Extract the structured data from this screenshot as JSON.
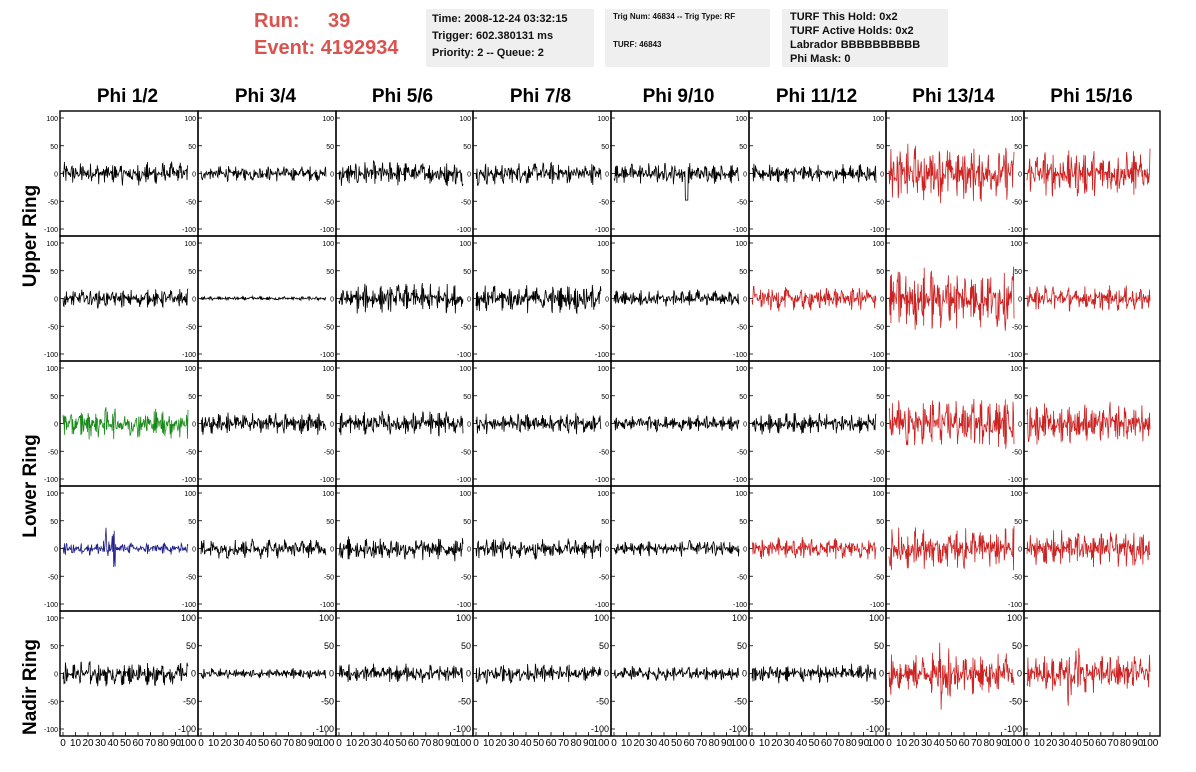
{
  "header": {
    "run_label": "Run:",
    "run_value": "39",
    "event_label": "Event:",
    "event_value": "4192934",
    "time": "Time: 2008-12-24 03:32:15",
    "trigger": "Trigger: 602.380131 ms",
    "priority": "Priority: 2 -- Queue: 2",
    "trig_num": "Trig Num: 46834 -- Trig Type: RF",
    "turf": "TURF: 46843",
    "turf_this_hold": "TURF This Hold: 0x2",
    "turf_active_holds": "TURF Active Holds: 0x2",
    "labrador": "Labrador BBBBBBBBBB",
    "phi_mask": "Phi Mask: 0"
  },
  "columns": [
    "Phi 1/2",
    "Phi 3/4",
    "Phi 5/6",
    "Phi 7/8",
    "Phi 9/10",
    "Phi 11/12",
    "Phi 13/14",
    "Phi 15/16"
  ],
  "ring_labels": [
    "Upper Ring",
    "Lower Ring",
    "Nadir Ring"
  ],
  "colors": {
    "normal": "#000000",
    "triggered": "#cc2222",
    "green": "#1a8a1a",
    "blue": "#22228a",
    "title_red": "#d9534f"
  },
  "chart_data": {
    "type": "line",
    "title": "",
    "xlabel": "",
    "ylabel": "",
    "xlim": [
      0,
      100
    ],
    "ylim": [
      -100,
      100
    ],
    "y_ticks": [
      -100,
      -50,
      0,
      50,
      100
    ],
    "x_ticks": [
      0,
      10,
      20,
      30,
      40,
      50,
      60,
      70,
      80,
      90,
      100
    ],
    "grid": false,
    "panels": [
      [
        {
          "color": "normal",
          "amp": 22
        },
        {
          "color": "normal",
          "amp": 15
        },
        {
          "color": "normal",
          "amp": 24
        },
        {
          "color": "normal",
          "amp": 22
        },
        {
          "color": "normal",
          "amp": 20,
          "spike": 48
        },
        {
          "color": "normal",
          "amp": 18
        },
        {
          "color": "triggered",
          "amp": 55
        },
        {
          "color": "triggered",
          "amp": 45
        }
      ],
      [
        {
          "color": "normal",
          "amp": 18
        },
        {
          "color": "normal",
          "amp": 4
        },
        {
          "color": "normal",
          "amp": 28
        },
        {
          "color": "normal",
          "amp": 28
        },
        {
          "color": "normal",
          "amp": 17
        },
        {
          "color": "triggered",
          "amp": 24
        },
        {
          "color": "triggered",
          "amp": 60
        },
        {
          "color": "triggered",
          "amp": 24
        }
      ],
      [
        {
          "color": "green",
          "amp": 30
        },
        {
          "color": "normal",
          "amp": 22
        },
        {
          "color": "normal",
          "amp": 24
        },
        {
          "color": "normal",
          "amp": 20
        },
        {
          "color": "normal",
          "amp": 15
        },
        {
          "color": "normal",
          "amp": 20
        },
        {
          "color": "triggered",
          "amp": 50
        },
        {
          "color": "triggered",
          "amp": 40
        }
      ],
      [
        {
          "color": "blue",
          "amp": 12,
          "burst": [
            30,
            42,
            38
          ]
        },
        {
          "color": "normal",
          "amp": 20
        },
        {
          "color": "normal",
          "amp": 24
        },
        {
          "color": "normal",
          "amp": 20
        },
        {
          "color": "normal",
          "amp": 15
        },
        {
          "color": "triggered",
          "amp": 22
        },
        {
          "color": "triggered",
          "amp": 42
        },
        {
          "color": "triggered",
          "amp": 35
        }
      ],
      [
        {
          "color": "normal",
          "amp": 24
        },
        {
          "color": "normal",
          "amp": 10
        },
        {
          "color": "normal",
          "amp": 18
        },
        {
          "color": "normal",
          "amp": 18
        },
        {
          "color": "normal",
          "amp": 14
        },
        {
          "color": "normal",
          "amp": 18
        },
        {
          "color": "triggered",
          "amp": 40,
          "burst": [
            38,
            50,
            75
          ]
        },
        {
          "color": "triggered",
          "amp": 35,
          "burst": [
            30,
            45,
            70
          ]
        }
      ]
    ]
  }
}
